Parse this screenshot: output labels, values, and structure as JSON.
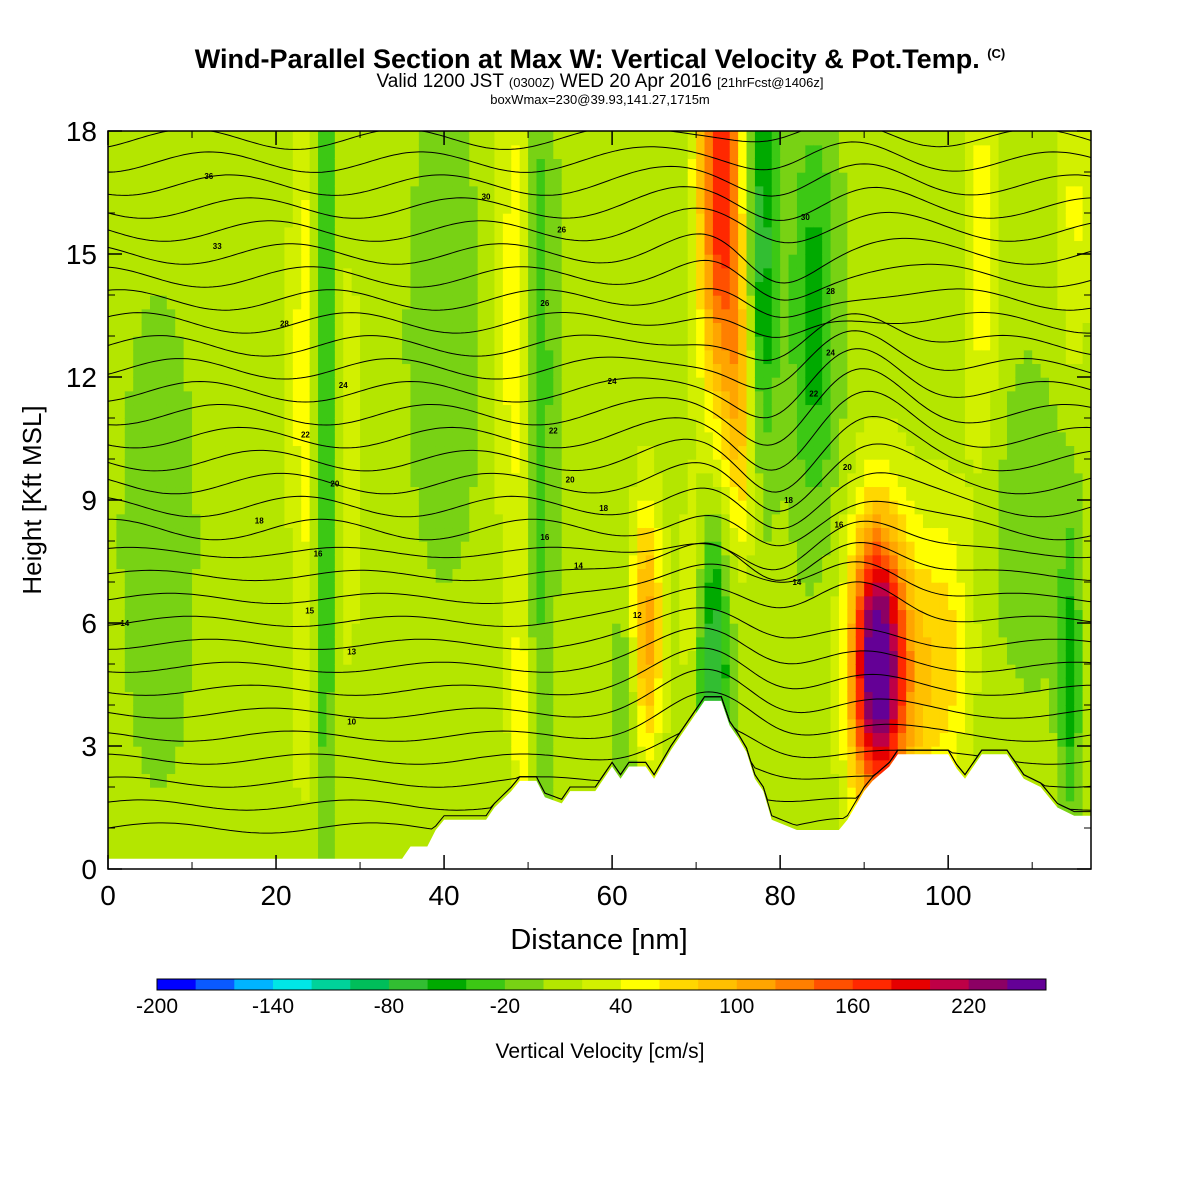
{
  "titles": {
    "main": "Wind-Parallel Section at Max W: Vertical Velocity & Pot.Temp.",
    "main_mark": "(C)",
    "valid_a": "Valid 1200 JST",
    "valid_b": "(0300Z)",
    "valid_c": "WED 20 Apr 2016",
    "valid_d": "[21hrFcst@1406z]",
    "box": "boxWmax=230@39.93,141.27,1715m"
  },
  "chart_data": {
    "type": "heatmap",
    "xlabel": "Distance [nm]",
    "ylabel": "Height [Kft MSL]",
    "xlim": [
      0,
      117
    ],
    "ylim": [
      0,
      18
    ],
    "x_ticks": [
      0,
      20,
      40,
      60,
      80,
      100
    ],
    "y_ticks": [
      0,
      3,
      6,
      9,
      12,
      15,
      18
    ],
    "colorbar": {
      "label": "Vertical Velocity [cm/s]",
      "min": -200,
      "max": 240,
      "step": 20,
      "tick_labels": [
        -200,
        -140,
        -80,
        -20,
        40,
        100,
        160,
        220
      ],
      "colors": [
        "#0000ff",
        "#0a5aff",
        "#00b4ff",
        "#00e6e6",
        "#00d29a",
        "#00be5a",
        "#32be32",
        "#00aa00",
        "#3cc814",
        "#78d214",
        "#b4e600",
        "#d2f000",
        "#ffff00",
        "#ffd700",
        "#ffc000",
        "#ffa500",
        "#ff7f00",
        "#ff5000",
        "#ff2800",
        "#e60000",
        "#be0046",
        "#8c0064",
        "#640096"
      ]
    },
    "terrain": [
      [
        0,
        0.25
      ],
      [
        35,
        0.25
      ],
      [
        36,
        0.55
      ],
      [
        38,
        0.55
      ],
      [
        39,
        0.95
      ],
      [
        40,
        1.2
      ],
      [
        45,
        1.2
      ],
      [
        46,
        1.5
      ],
      [
        48,
        1.9
      ],
      [
        49,
        2.15
      ],
      [
        51,
        2.15
      ],
      [
        52,
        1.75
      ],
      [
        54,
        1.6
      ],
      [
        55,
        1.9
      ],
      [
        58,
        1.9
      ],
      [
        59,
        2.2
      ],
      [
        60,
        2.5
      ],
      [
        61,
        2.2
      ],
      [
        62,
        2.5
      ],
      [
        64,
        2.5
      ],
      [
        65,
        2.2
      ],
      [
        66,
        2.55
      ],
      [
        67,
        2.9
      ],
      [
        68,
        3.2
      ],
      [
        69,
        3.5
      ],
      [
        70,
        3.8
      ],
      [
        71,
        4.1
      ],
      [
        73,
        4.1
      ],
      [
        74,
        3.5
      ],
      [
        75,
        3.2
      ],
      [
        76,
        2.85
      ],
      [
        77,
        2.2
      ],
      [
        78,
        1.9
      ],
      [
        79,
        1.2
      ],
      [
        82,
        0.95
      ],
      [
        87,
        0.95
      ],
      [
        88,
        1.2
      ],
      [
        89,
        1.55
      ],
      [
        90,
        1.9
      ],
      [
        91,
        2.15
      ],
      [
        93,
        2.5
      ],
      [
        94,
        2.8
      ],
      [
        100,
        2.8
      ],
      [
        101,
        2.45
      ],
      [
        102,
        2.2
      ],
      [
        103,
        2.5
      ],
      [
        104,
        2.8
      ],
      [
        107,
        2.8
      ],
      [
        108,
        2.5
      ],
      [
        109,
        2.2
      ],
      [
        111,
        2.0
      ],
      [
        112,
        1.75
      ],
      [
        113,
        1.5
      ],
      [
        115,
        1.3
      ],
      [
        117,
        1.3
      ]
    ],
    "vertical_velocity_features": [
      {
        "x": 23.5,
        "z": 12.0,
        "sx": 1.3,
        "sz": 7.0,
        "w": 45
      },
      {
        "x": 25.8,
        "z": 11.0,
        "sx": 1.1,
        "sz": 8.0,
        "w": -60
      },
      {
        "x": 28.5,
        "z": 10.0,
        "sx": 1.4,
        "sz": 6.0,
        "w": 20
      },
      {
        "x": 48.5,
        "z": 13.5,
        "sx": 1.5,
        "sz": 6.0,
        "w": 45
      },
      {
        "x": 51.3,
        "z": 12.0,
        "sx": 1.3,
        "sz": 7.0,
        "w": -45
      },
      {
        "x": 49.3,
        "z": 3.5,
        "sx": 0.8,
        "sz": 2.0,
        "w": 45
      },
      {
        "x": 64.0,
        "z": 5.8,
        "sx": 1.4,
        "sz": 2.2,
        "w": 110
      },
      {
        "x": 62.0,
        "z": 4.0,
        "sx": 1.2,
        "sz": 2.5,
        "w": -40
      },
      {
        "x": 69.5,
        "z": 6.5,
        "sx": 1.0,
        "sz": 2.0,
        "w": 35
      },
      {
        "x": 73.0,
        "z": 17.0,
        "sx": 1.9,
        "sz": 4.0,
        "w": 175
      },
      {
        "x": 75.5,
        "z": 11.5,
        "sx": 1.3,
        "sz": 2.5,
        "w": 80
      },
      {
        "x": 72.0,
        "z": 5.0,
        "sx": 1.4,
        "sz": 2.5,
        "w": -90
      },
      {
        "x": 77.5,
        "z": 15.0,
        "sx": 1.5,
        "sz": 3.5,
        "w": -90
      },
      {
        "x": 84.0,
        "z": 13.5,
        "sx": 2.0,
        "sz": 3.5,
        "w": -60
      },
      {
        "x": 91.5,
        "z": 5.0,
        "sx": 2.2,
        "sz": 2.4,
        "w": 235
      },
      {
        "x": 95.0,
        "z": 4.5,
        "sx": 3.5,
        "sz": 2.8,
        "w": 65
      },
      {
        "x": 100.0,
        "z": 5.5,
        "sx": 2.2,
        "sz": 2.5,
        "w": 40
      },
      {
        "x": 104.0,
        "z": 15.0,
        "sx": 1.5,
        "sz": 3.5,
        "w": 45
      },
      {
        "x": 115.0,
        "z": 16.0,
        "sx": 1.5,
        "sz": 3.0,
        "w": 35
      },
      {
        "x": 114.5,
        "z": 4.5,
        "sx": 0.9,
        "sz": 2.5,
        "w": -55
      },
      {
        "x": 6.0,
        "z": 8.0,
        "sx": 3.0,
        "sz": 4.0,
        "w": -25
      },
      {
        "x": 40.0,
        "z": 13.0,
        "sx": 3.0,
        "sz": 4.0,
        "w": -25
      },
      {
        "x": 110.0,
        "z": 8.5,
        "sx": 4.0,
        "sz": 3.0,
        "w": -20
      }
    ],
    "contour_labels": [
      {
        "text": "36",
        "x": 12,
        "y": 16.9
      },
      {
        "text": "33",
        "x": 13,
        "y": 15.2
      },
      {
        "text": "28",
        "x": 21,
        "y": 13.3
      },
      {
        "text": "24",
        "x": 28,
        "y": 11.8
      },
      {
        "text": "22",
        "x": 23.5,
        "y": 10.6
      },
      {
        "text": "20",
        "x": 27,
        "y": 9.4
      },
      {
        "text": "18",
        "x": 18,
        "y": 8.5
      },
      {
        "text": "16",
        "x": 25,
        "y": 7.7
      },
      {
        "text": "15",
        "x": 24,
        "y": 6.3
      },
      {
        "text": "14",
        "x": 2,
        "y": 6.0
      },
      {
        "text": "13",
        "x": 29,
        "y": 5.3
      },
      {
        "text": "10",
        "x": 29,
        "y": 3.6
      },
      {
        "text": "30",
        "x": 45,
        "y": 16.4
      },
      {
        "text": "26",
        "x": 54,
        "y": 15.6
      },
      {
        "text": "26",
        "x": 52,
        "y": 13.8
      },
      {
        "text": "24",
        "x": 60,
        "y": 11.9
      },
      {
        "text": "22",
        "x": 53,
        "y": 10.7
      },
      {
        "text": "20",
        "x": 55,
        "y": 9.5
      },
      {
        "text": "18",
        "x": 59,
        "y": 8.8
      },
      {
        "text": "16",
        "x": 52,
        "y": 8.1
      },
      {
        "text": "14",
        "x": 56,
        "y": 7.4
      },
      {
        "text": "12",
        "x": 63,
        "y": 6.2
      },
      {
        "text": "30",
        "x": 83,
        "y": 15.9
      },
      {
        "text": "28",
        "x": 86,
        "y": 14.1
      },
      {
        "text": "24",
        "x": 86,
        "y": 12.6
      },
      {
        "text": "22",
        "x": 84,
        "y": 11.6
      },
      {
        "text": "20",
        "x": 88,
        "y": 9.8
      },
      {
        "text": "18",
        "x": 81,
        "y": 9.0
      },
      {
        "text": "16",
        "x": 87,
        "y": 8.4
      },
      {
        "text": "14",
        "x": 82,
        "y": 7.0
      }
    ]
  }
}
